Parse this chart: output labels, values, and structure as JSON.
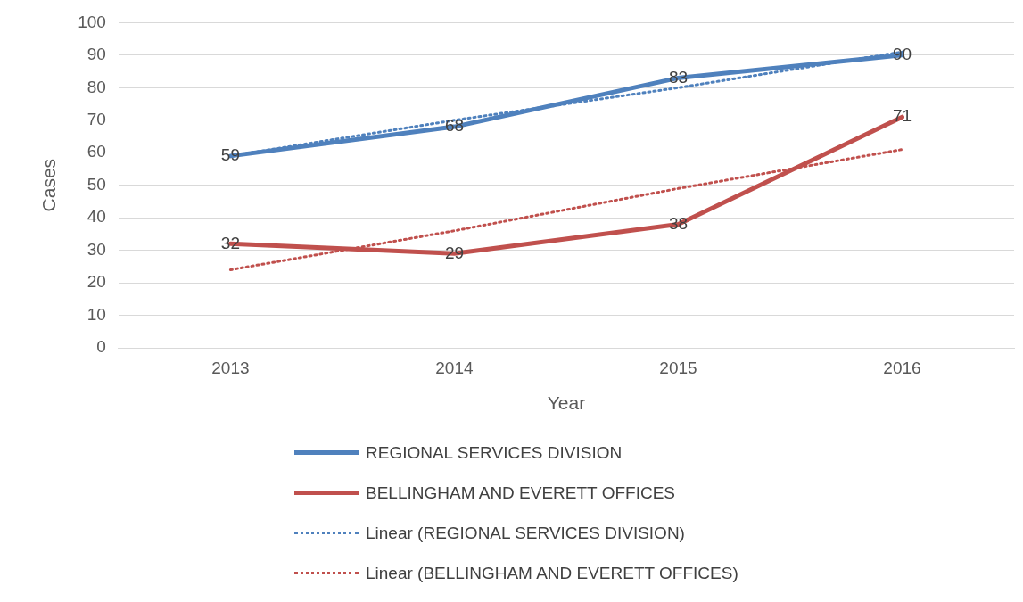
{
  "chart_data": {
    "type": "line",
    "xlabel": "Year",
    "ylabel": "Cases",
    "categories": [
      "2013",
      "2014",
      "2015",
      "2016"
    ],
    "series": [
      {
        "name": "REGIONAL SERVICES DIVISION",
        "color": "#4f81bd",
        "values": [
          59,
          68,
          83,
          90
        ],
        "value_labels": [
          "59",
          "68",
          "83",
          "90"
        ],
        "line_style": "solid"
      },
      {
        "name": "BELLINGHAM AND EVERETT OFFICES",
        "color": "#c0504d",
        "values": [
          32,
          29,
          38,
          71
        ],
        "value_labels": [
          "32",
          "29",
          "38",
          "71"
        ],
        "line_style": "solid"
      },
      {
        "name": "Linear (REGIONAL SERVICES DIVISION)",
        "color": "#4f81bd",
        "values": [
          59,
          70,
          80,
          91
        ],
        "line_style": "dotted"
      },
      {
        "name": "Linear (BELLINGHAM AND EVERETT OFFICES)",
        "color": "#c0504d",
        "values": [
          24,
          36,
          49,
          61
        ],
        "line_style": "dotted"
      }
    ],
    "ylim": [
      0,
      100
    ],
    "yticks": [
      0,
      10,
      20,
      30,
      40,
      50,
      60,
      70,
      80,
      90,
      100
    ],
    "grid": "y",
    "legend": "bottom",
    "marker": "none"
  }
}
